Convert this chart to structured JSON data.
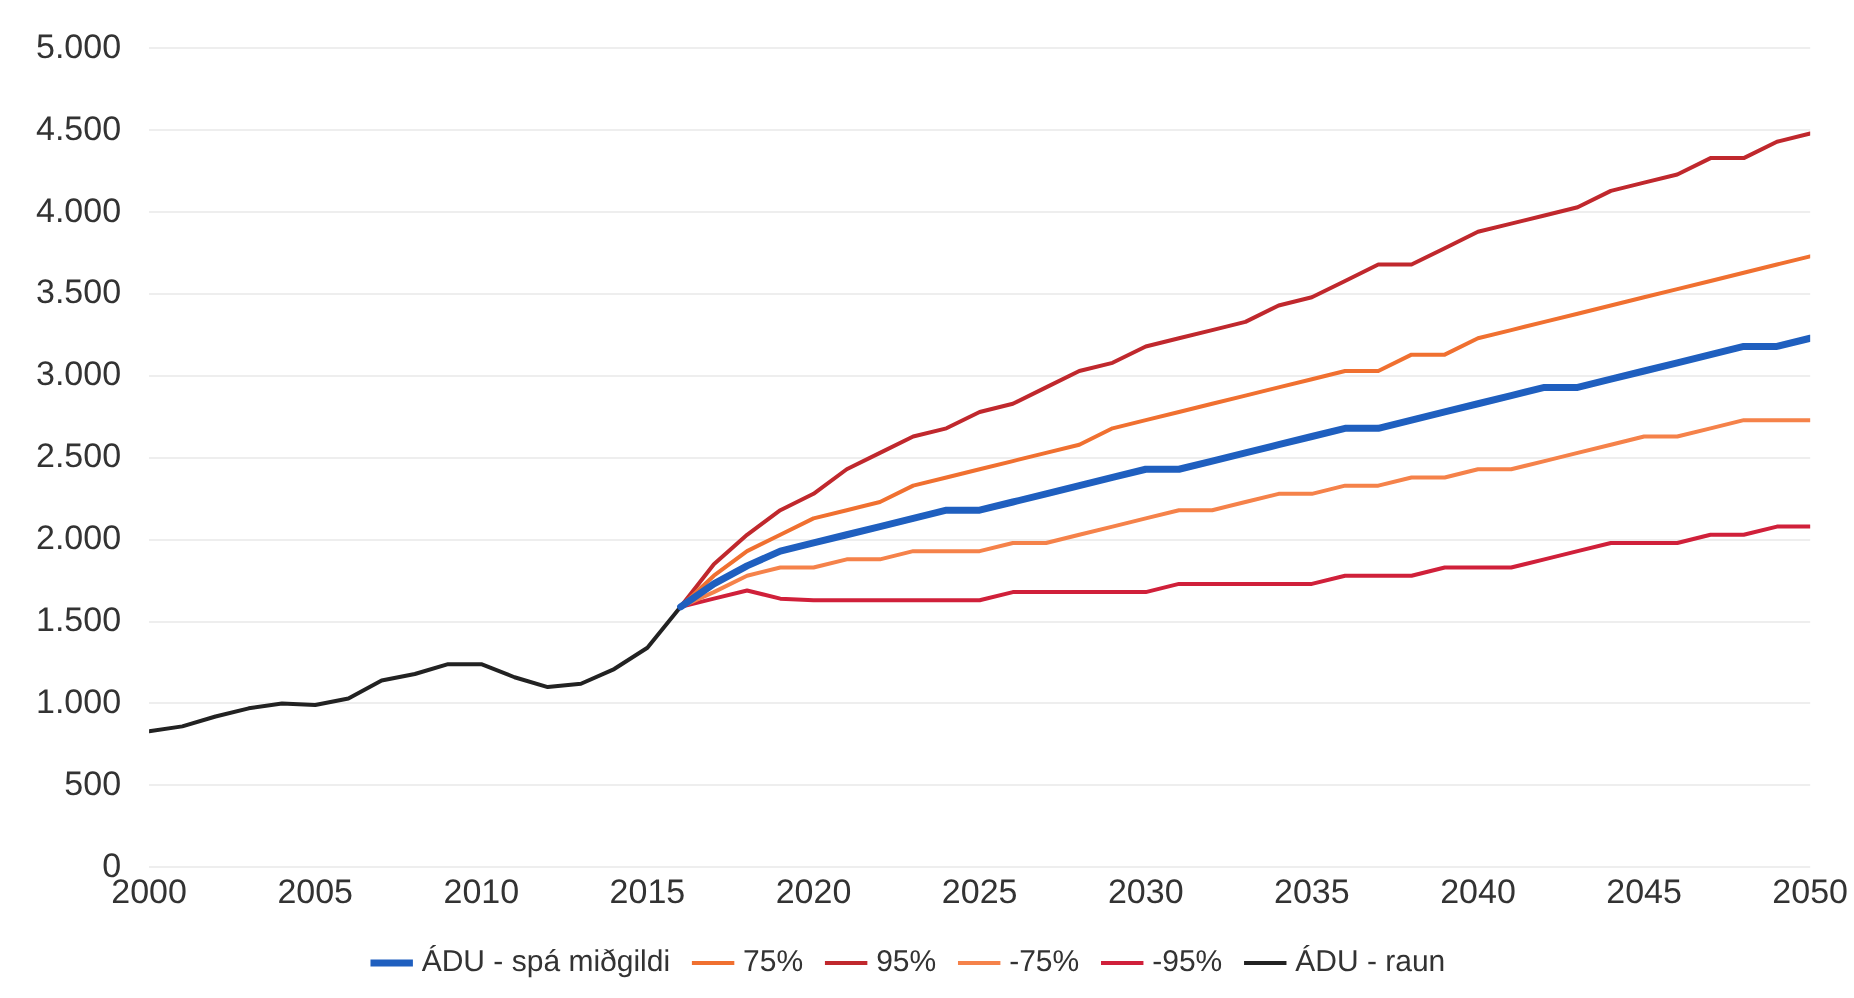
{
  "chart_data": {
    "type": "line",
    "xlim": [
      2000,
      2050
    ],
    "xticks": [
      2000,
      2005,
      2010,
      2015,
      2020,
      2025,
      2030,
      2035,
      2040,
      2045,
      2050
    ],
    "ylim": [
      0,
      5000
    ],
    "yticks": [
      0,
      {
        "value": 500,
        "label": "500"
      },
      {
        "value": 1000,
        "label": "1.000"
      },
      {
        "value": 1500,
        "label": "1.500"
      },
      {
        "value": 2000,
        "label": "2.000"
      },
      {
        "value": 2500,
        "label": "2.500"
      },
      {
        "value": 3000,
        "label": "3.000"
      },
      {
        "value": 3500,
        "label": "3.500"
      },
      {
        "value": 4000,
        "label": "4.000"
      },
      {
        "value": 4500,
        "label": "4.500"
      },
      {
        "value": 5000,
        "label": "5.000"
      }
    ],
    "grid": "y",
    "legend": "bottom",
    "marker": "none",
    "line_style": "solid",
    "series": [
      {
        "name": "ÁDU - spá miðgildi",
        "color": "#1f5fbf",
        "x": [
          2016,
          2017,
          2018,
          2019,
          2020,
          2021,
          2022,
          2023,
          2024,
          2025,
          2026,
          2027,
          2028,
          2029,
          2030,
          2031,
          2032,
          2033,
          2034,
          2035,
          2036,
          2037,
          2038,
          2039,
          2040,
          2041,
          2042,
          2043,
          2044,
          2045,
          2046,
          2047,
          2048,
          2049,
          2050
        ],
        "values": [
          1590,
          1730,
          1840,
          1930,
          1980,
          2030,
          2080,
          2130,
          2180,
          2180,
          2230,
          2280,
          2330,
          2380,
          2430,
          2430,
          2480,
          2530,
          2580,
          2630,
          2680,
          2680,
          2730,
          2780,
          2830,
          2880,
          2930,
          2930,
          2980,
          3030,
          3080,
          3130,
          3180,
          3180,
          3230
        ]
      },
      {
        "name": "75%",
        "color": "#f07030",
        "x": [
          2016,
          2017,
          2018,
          2019,
          2020,
          2021,
          2022,
          2023,
          2024,
          2025,
          2026,
          2027,
          2028,
          2029,
          2030,
          2031,
          2032,
          2033,
          2034,
          2035,
          2036,
          2037,
          2038,
          2039,
          2040,
          2041,
          2042,
          2043,
          2044,
          2045,
          2046,
          2047,
          2048,
          2049,
          2050
        ],
        "values": [
          1590,
          1780,
          1930,
          2030,
          2130,
          2180,
          2230,
          2330,
          2380,
          2430,
          2480,
          2530,
          2580,
          2680,
          2730,
          2780,
          2830,
          2880,
          2930,
          2980,
          3030,
          3030,
          3130,
          3130,
          3230,
          3280,
          3330,
          3380,
          3430,
          3480,
          3530,
          3580,
          3630,
          3680,
          3730
        ]
      },
      {
        "name": "95%",
        "color": "#c0282d",
        "x": [
          2016,
          2017,
          2018,
          2019,
          2020,
          2021,
          2022,
          2023,
          2024,
          2025,
          2026,
          2027,
          2028,
          2029,
          2030,
          2031,
          2032,
          2033,
          2034,
          2035,
          2036,
          2037,
          2038,
          2039,
          2040,
          2041,
          2042,
          2043,
          2044,
          2045,
          2046,
          2047,
          2048,
          2049,
          2050
        ],
        "values": [
          1590,
          1850,
          2030,
          2180,
          2280,
          2430,
          2530,
          2630,
          2680,
          2780,
          2830,
          2930,
          3030,
          3080,
          3180,
          3230,
          3280,
          3330,
          3430,
          3480,
          3580,
          3680,
          3680,
          3780,
          3880,
          3930,
          3980,
          4030,
          4130,
          4180,
          4230,
          4330,
          4330,
          4430,
          4480
        ]
      },
      {
        "name": "-75%",
        "color": "#f5824a",
        "x": [
          2016,
          2017,
          2018,
          2019,
          2020,
          2021,
          2022,
          2023,
          2024,
          2025,
          2026,
          2027,
          2028,
          2029,
          2030,
          2031,
          2032,
          2033,
          2034,
          2035,
          2036,
          2037,
          2038,
          2039,
          2040,
          2041,
          2042,
          2043,
          2044,
          2045,
          2046,
          2047,
          2048,
          2049,
          2050
        ],
        "values": [
          1590,
          1680,
          1780,
          1830,
          1830,
          1880,
          1880,
          1930,
          1930,
          1930,
          1980,
          1980,
          2030,
          2080,
          2130,
          2180,
          2180,
          2230,
          2280,
          2280,
          2330,
          2330,
          2380,
          2380,
          2430,
          2430,
          2480,
          2530,
          2580,
          2630,
          2630,
          2680,
          2730,
          2730,
          2730
        ]
      },
      {
        "name": "-95%",
        "color": "#d0203a",
        "x": [
          2016,
          2017,
          2018,
          2019,
          2020,
          2021,
          2022,
          2023,
          2024,
          2025,
          2026,
          2027,
          2028,
          2029,
          2030,
          2031,
          2032,
          2033,
          2034,
          2035,
          2036,
          2037,
          2038,
          2039,
          2040,
          2041,
          2042,
          2043,
          2044,
          2045,
          2046,
          2047,
          2048,
          2049,
          2050
        ],
        "values": [
          1590,
          1640,
          1690,
          1640,
          1630,
          1630,
          1630,
          1630,
          1630,
          1630,
          1680,
          1680,
          1680,
          1680,
          1680,
          1730,
          1730,
          1730,
          1730,
          1730,
          1780,
          1780,
          1780,
          1830,
          1830,
          1830,
          1880,
          1930,
          1980,
          1980,
          1980,
          2030,
          2030,
          2080,
          2080
        ]
      },
      {
        "name": "ÁDU - raun",
        "color": "#222222",
        "x": [
          2000,
          2001,
          2002,
          2003,
          2004,
          2005,
          2006,
          2007,
          2008,
          2009,
          2010,
          2011,
          2012,
          2013,
          2014,
          2015,
          2016
        ],
        "values": [
          830,
          860,
          920,
          970,
          1000,
          990,
          1030,
          1140,
          1180,
          1240,
          1240,
          1160,
          1100,
          1120,
          1210,
          1340,
          1590
        ]
      }
    ]
  }
}
